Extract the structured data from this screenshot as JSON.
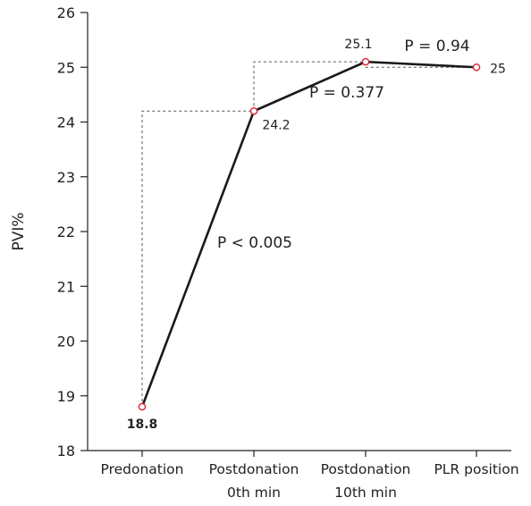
{
  "chart_data": {
    "type": "line",
    "title": "",
    "xlabel": "",
    "ylabel": "PVI%",
    "ylim": [
      18,
      26
    ],
    "yticks": [
      "18",
      "19",
      "20",
      "21",
      "22",
      "23",
      "24",
      "25",
      "26"
    ],
    "categories": [
      [
        "Predonation"
      ],
      [
        "Postdonation",
        "0th min"
      ],
      [
        "Postdonation",
        "10th min"
      ],
      [
        "PLR position"
      ]
    ],
    "series": [
      {
        "values": [
          18.8,
          24.2,
          25.1,
          25.0
        ]
      }
    ],
    "data_labels": [
      "18.8",
      "24.2",
      "25.1",
      "25"
    ],
    "annotations": [
      {
        "text": "P < 0.005",
        "between": [
          0,
          1
        ]
      },
      {
        "text": "P = 0.377",
        "between": [
          1,
          2
        ]
      },
      {
        "text": "P = 0.94",
        "between": [
          2,
          3
        ]
      }
    ],
    "grid": false,
    "legend": "none",
    "colors": {
      "line": "#1a1a1a",
      "marker": "#d9232e",
      "guide": "#555555",
      "axis": "#222222"
    }
  }
}
